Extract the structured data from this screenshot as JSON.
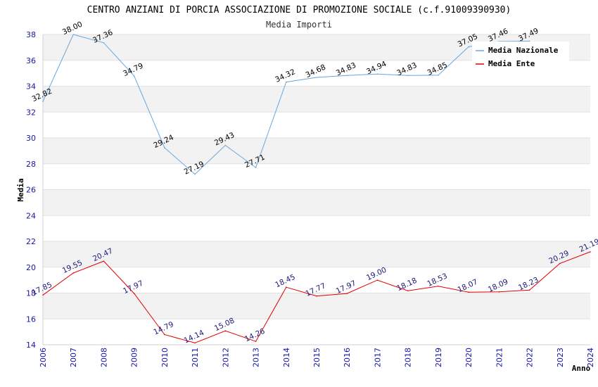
{
  "chart_data": {
    "type": "line",
    "title": "CENTRO ANZIANI DI PORCIA ASSOCIAZIONE DI PROMOZIONE SOCIALE (c.f.91009390930)",
    "subtitle": "Media Importi",
    "xlabel": "Anno",
    "ylabel": "Media",
    "ylim": [
      14,
      38
    ],
    "yticks": [
      14,
      16,
      18,
      20,
      22,
      24,
      26,
      28,
      30,
      32,
      34,
      36,
      38
    ],
    "x": [
      "2006",
      "2007",
      "2008",
      "2009",
      "2010",
      "2011",
      "2012",
      "2013",
      "2014",
      "2015",
      "2016",
      "2017",
      "2018",
      "2019",
      "2020",
      "2021",
      "2022",
      "2023",
      "2024"
    ],
    "legend_position": "top-right",
    "grid": true,
    "series": [
      {
        "name": "Media Nazionale",
        "color": "#6aa6dc",
        "values": [
          32.82,
          38.0,
          37.36,
          34.79,
          29.24,
          27.19,
          29.43,
          27.71,
          34.32,
          34.68,
          34.83,
          34.94,
          34.83,
          34.85,
          37.05,
          37.46,
          37.49,
          null,
          null
        ],
        "labels": [
          "32.82",
          "38.00",
          "37.36",
          "34.79",
          "29.24",
          "27.19",
          "29.43",
          "27.71",
          "34.32",
          "34.68",
          "34.83",
          "34.94",
          "34.83",
          "34.85",
          "37.05",
          "37.46",
          "37.49",
          "",
          ""
        ]
      },
      {
        "name": "Media Ente",
        "color": "#e00000",
        "values": [
          17.85,
          19.55,
          20.47,
          17.97,
          14.79,
          14.14,
          15.08,
          14.26,
          18.45,
          17.77,
          17.97,
          19.0,
          18.18,
          18.53,
          18.07,
          18.09,
          18.23,
          20.29,
          21.19
        ],
        "labels": [
          "17.85",
          "19.55",
          "20.47",
          "17.97",
          "14.79",
          "14.14",
          "15.08",
          "14.26",
          "18.45",
          "17.77",
          "17.97",
          "19.00",
          "18.18",
          "18.53",
          "18.07",
          "18.09",
          "18.23",
          "20.29",
          "21.19"
        ]
      }
    ]
  }
}
